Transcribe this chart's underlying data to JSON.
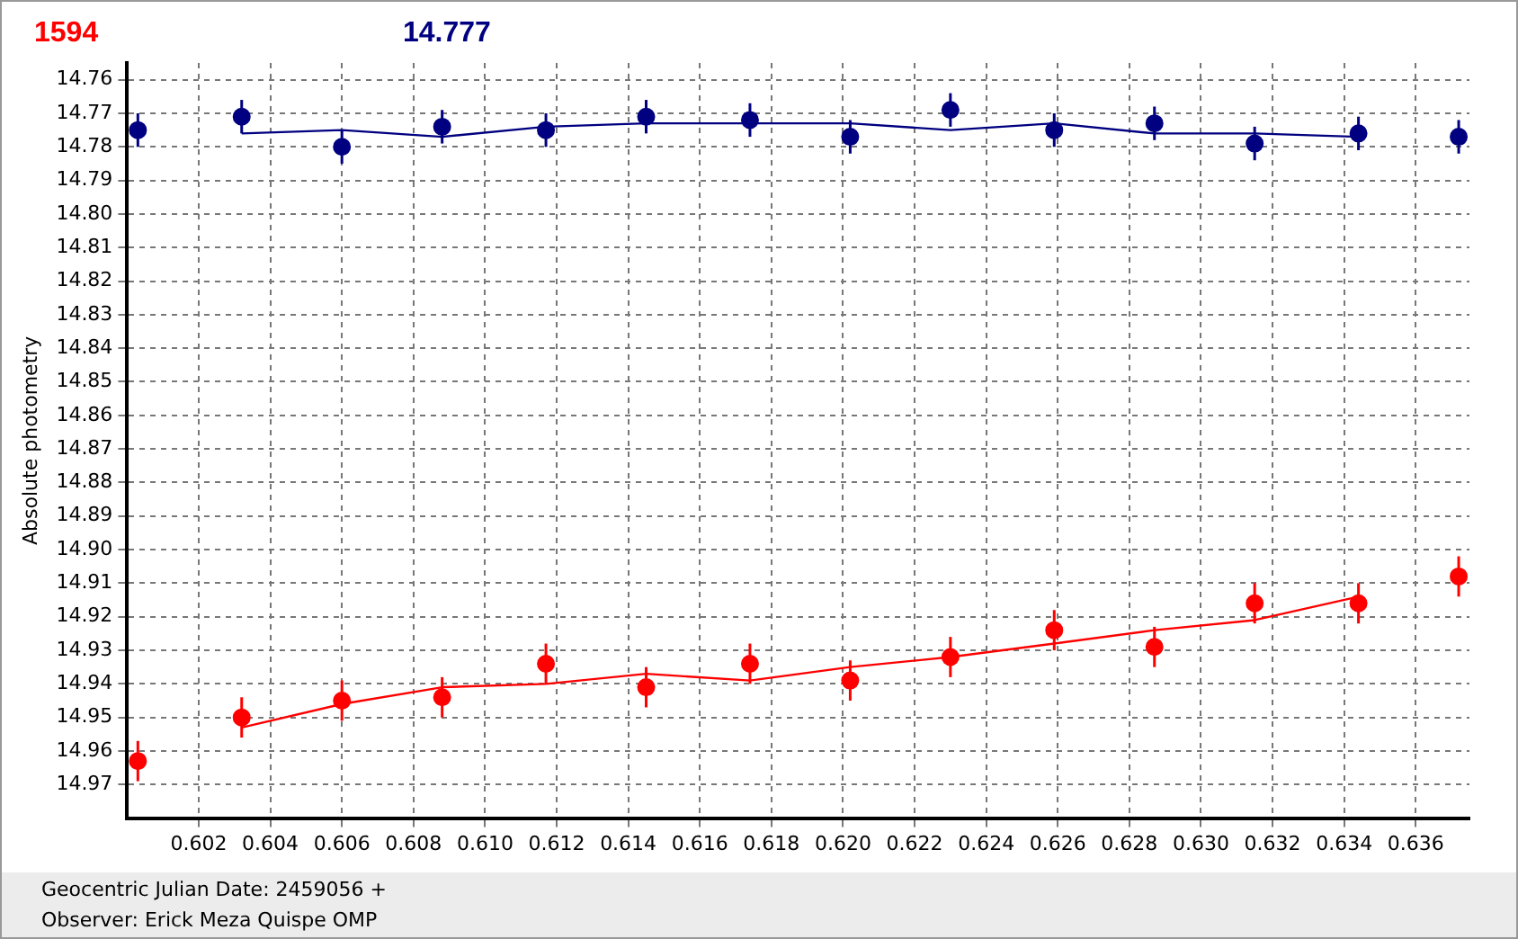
{
  "chart_data": {
    "type": "scatter",
    "xlabel": "Geocentric Julian Date: 2459056 +",
    "ylabel": "Absolute photometry",
    "annotations": [
      "Observer: Erick Meza Quispe OMP"
    ],
    "xlim": [
      0.6,
      0.6375
    ],
    "ylim": [
      14.98,
      14.755
    ],
    "xticks": [
      0.602,
      0.604,
      0.606,
      0.608,
      {
        "value": 0.61,
        "label": "0.610"
      },
      0.612,
      0.614,
      0.616,
      0.618,
      {
        "value": 0.62,
        "label": "0.620"
      },
      0.622,
      0.624,
      0.626,
      0.628,
      {
        "value": 0.63,
        "label": "0.630"
      },
      0.632,
      0.634,
      0.636
    ],
    "yticks": [
      14.76,
      14.77,
      14.78,
      14.79,
      {
        "value": 14.8,
        "label": "14.80"
      },
      14.81,
      14.82,
      14.83,
      14.84,
      14.85,
      14.86,
      14.87,
      14.88,
      14.89,
      {
        "value": 14.9,
        "label": "14.90"
      },
      14.91,
      14.92,
      14.93,
      14.94,
      14.95,
      14.96,
      14.97
    ],
    "grid": true,
    "marker": "circle",
    "series": [
      {
        "name": "1594",
        "color": "#ff0000",
        "x": [
          0.6003,
          0.6032,
          0.606,
          0.6088,
          0.6117,
          0.6145,
          0.6174,
          0.6202,
          0.623,
          0.6259,
          0.6287,
          0.6315,
          0.6344,
          0.6372
        ],
        "values": [
          14.963,
          14.95,
          14.945,
          14.944,
          14.934,
          14.941,
          14.934,
          14.939,
          14.932,
          14.924,
          14.929,
          14.916,
          14.916,
          14.908
        ],
        "errors": [
          0.006,
          0.006,
          0.006,
          0.006,
          0.006,
          0.006,
          0.006,
          0.006,
          0.006,
          0.006,
          0.006,
          0.006,
          0.006,
          0.006
        ]
      },
      {
        "type": "line",
        "marker": "none",
        "color": "#ff0000",
        "x": [
          0.6032,
          0.606,
          0.6088,
          0.6117,
          0.6145,
          0.6174,
          0.6202,
          0.623,
          0.6259,
          0.6287,
          0.6315,
          0.6344
        ],
        "values": [
          14.953,
          14.946,
          14.941,
          14.94,
          14.937,
          14.939,
          14.935,
          14.932,
          14.928,
          14.924,
          14.921,
          14.914
        ]
      },
      {
        "name": "14.777",
        "color": "#000080",
        "x": [
          0.6003,
          0.6032,
          0.606,
          0.6088,
          0.6117,
          0.6145,
          0.6174,
          0.6202,
          0.623,
          0.6259,
          0.6287,
          0.6315,
          0.6344,
          0.6372
        ],
        "values": [
          14.775,
          14.771,
          14.78,
          14.774,
          14.775,
          14.771,
          14.772,
          14.777,
          14.769,
          14.775,
          14.773,
          14.779,
          14.776,
          14.777
        ],
        "errors": [
          0.005,
          0.005,
          0.005,
          0.005,
          0.005,
          0.005,
          0.005,
          0.005,
          0.005,
          0.005,
          0.005,
          0.005,
          0.005,
          0.005
        ]
      },
      {
        "type": "line",
        "marker": "none",
        "color": "#000080",
        "x": [
          0.6032,
          0.606,
          0.6088,
          0.6117,
          0.6145,
          0.6174,
          0.6202,
          0.623,
          0.6259,
          0.6287,
          0.6315,
          0.6344
        ],
        "values": [
          14.776,
          14.775,
          14.777,
          14.774,
          14.773,
          14.773,
          14.773,
          14.775,
          14.773,
          14.776,
          14.776,
          14.777
        ]
      }
    ]
  }
}
